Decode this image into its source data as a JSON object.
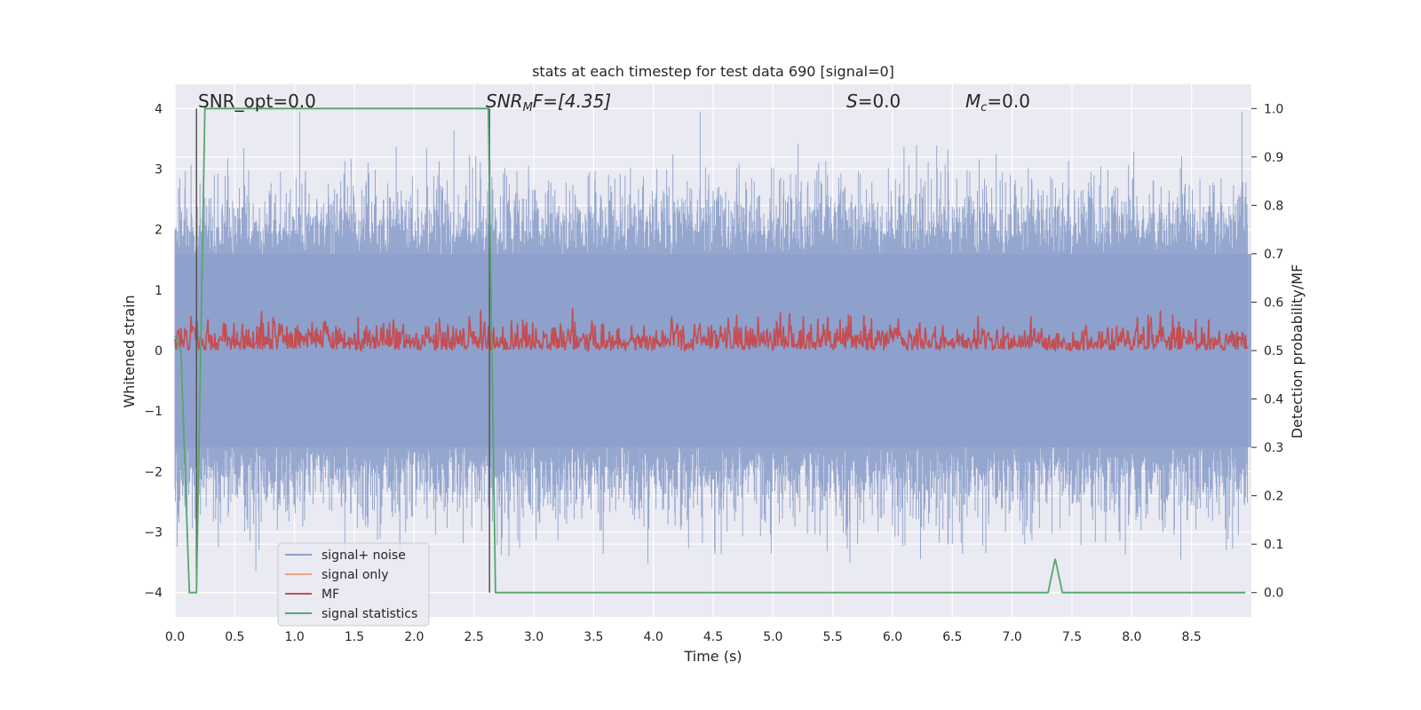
{
  "chart_data": {
    "type": "line",
    "title": "stats at each timestep for test data 690 [signal=0]",
    "xlabel": "Time (s)",
    "ylabel": "Whitened strain",
    "ylabel_right": "Detection probability/MF",
    "xlim": [
      0.0,
      9.0
    ],
    "ylim": [
      -4.4,
      4.4
    ],
    "ylim_right": [
      -0.05,
      1.05
    ],
    "x_ticks": [
      "0.0",
      "0.5",
      "1.0",
      "1.5",
      "2.0",
      "2.5",
      "3.0",
      "3.5",
      "4.0",
      "4.5",
      "5.0",
      "5.5",
      "6.0",
      "6.5",
      "7.0",
      "7.5",
      "8.0",
      "8.5"
    ],
    "y_ticks": [
      "−4",
      "−3",
      "−2",
      "−1",
      "0",
      "1",
      "2",
      "3",
      "4"
    ],
    "y_ticks_right": [
      "0.0",
      "0.1",
      "0.2",
      "0.3",
      "0.4",
      "0.5",
      "0.6",
      "0.7",
      "0.8",
      "0.9",
      "1.0"
    ],
    "grid": true,
    "legend_placement": "lower-left",
    "annotations": {
      "snr_opt": "SNR_opt=0.0",
      "snr_mf_main": "SNR",
      "snr_mf_sub": "M",
      "snr_mf_rest": "F=[4.35]",
      "s_main": "S",
      "s_rest": "=0.0",
      "mc_main": "M",
      "mc_sub": "c",
      "mc_rest": "=0.0"
    },
    "series": [
      {
        "name": "signal+ noise",
        "color": "#8da0cb",
        "axis": "left",
        "description_values": "noise, amplitude approx ±1.6 with spikes up to ±3.9"
      },
      {
        "name": "signal only",
        "color": "#f1a07f",
        "axis": "left",
        "values": []
      },
      {
        "name": "MF",
        "color": "#c44e52",
        "axis": "right",
        "value_range": [
          0.5,
          0.6
        ]
      },
      {
        "name": "signal statistics",
        "color": "#55a868",
        "axis": "right",
        "x": [
          0.0,
          0.05,
          0.12,
          0.18,
          0.25,
          0.3,
          2.5,
          2.6,
          2.62,
          2.68,
          7.3,
          7.36,
          7.42,
          7.7,
          8.95
        ],
        "values": [
          0.53,
          0.5,
          0.0,
          0.0,
          1.0,
          1.0,
          1.0,
          1.0,
          1.0,
          0.0,
          0.0,
          0.07,
          0.0,
          0.0,
          0.0
        ]
      }
    ],
    "vertical_markers_x": [
      0.18,
      2.63
    ]
  }
}
